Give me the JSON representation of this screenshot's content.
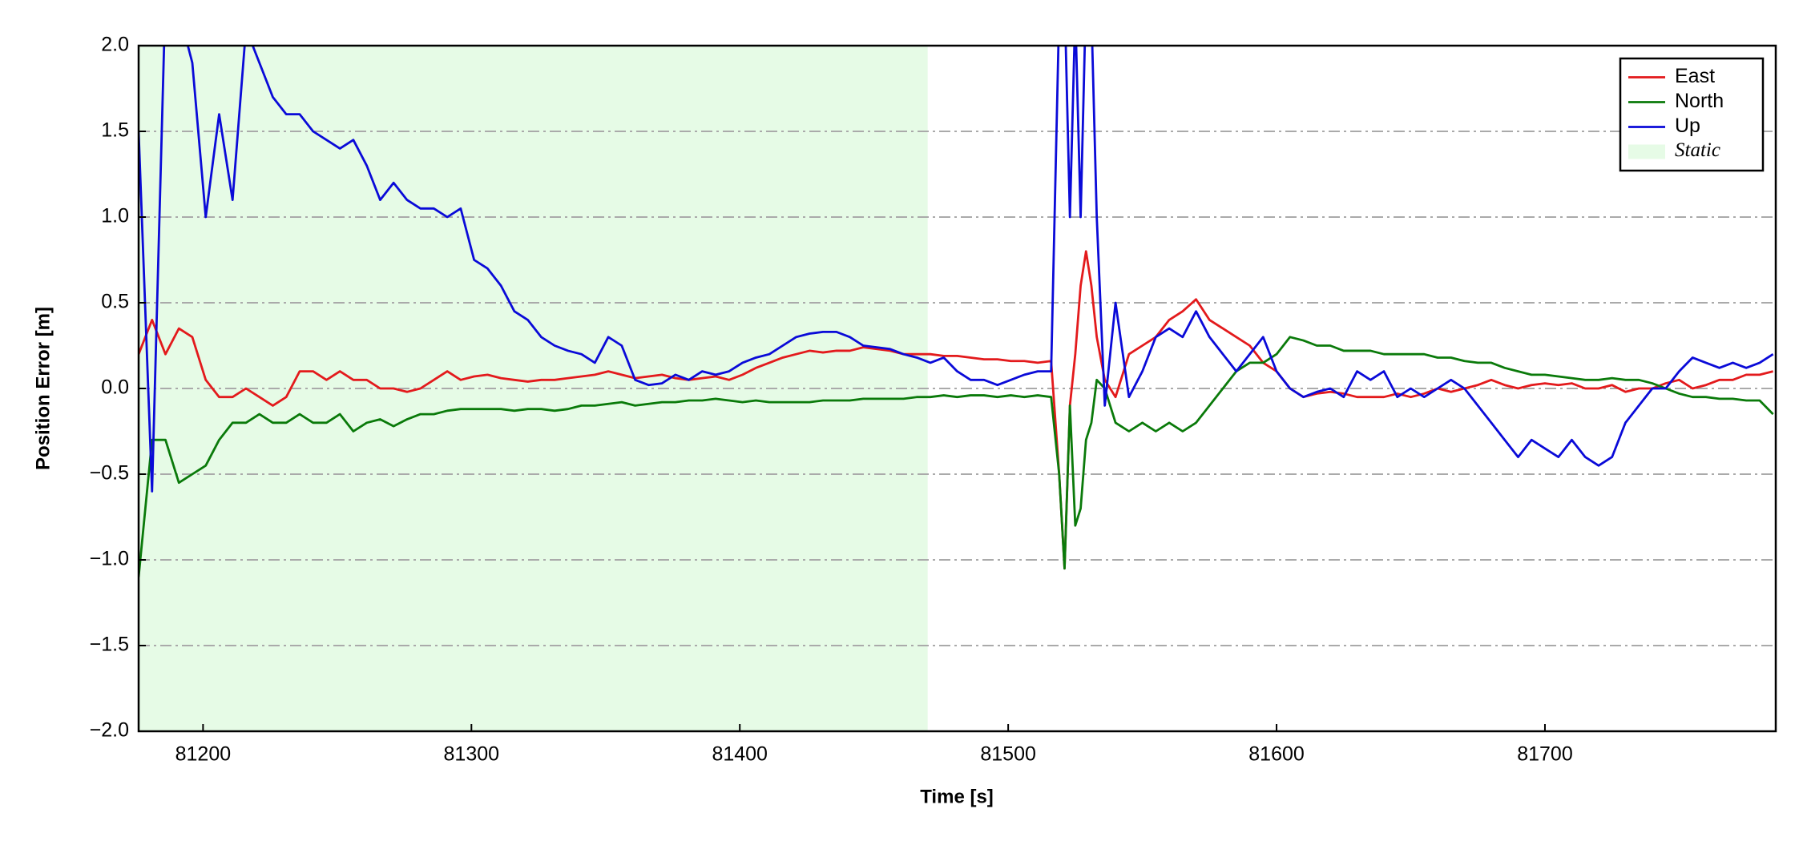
{
  "chart_data": {
    "type": "line",
    "xlabel": "Time [s]",
    "ylabel": "Position Error [m]",
    "xlim": [
      81176,
      81786
    ],
    "ylim": [
      -2.0,
      2.0
    ],
    "xticks": [
      81200,
      81300,
      81400,
      81500,
      81600,
      81700
    ],
    "yticks": [
      {
        "value": -2.0,
        "label": "−2.0"
      },
      {
        "value": -1.5,
        "label": "−1.5"
      },
      {
        "value": -1.0,
        "label": "−1.0"
      },
      {
        "value": -0.5,
        "label": "−0.5"
      },
      {
        "value": 0,
        "label": "0.0"
      },
      0.5,
      {
        "value": 1.0,
        "label": "1.0"
      },
      1.5,
      {
        "value": 2.0,
        "label": "2.0"
      }
    ],
    "grid": true,
    "legend": "upper right",
    "regions": [
      {
        "name": "Static",
        "start": 81176,
        "end": 81470,
        "color": "#e6fbe6"
      }
    ],
    "x": [
      81176,
      81181,
      81186,
      81191,
      81196,
      81201,
      81206,
      81211,
      81216,
      81221,
      81226,
      81231,
      81236,
      81241,
      81246,
      81251,
      81256,
      81261,
      81266,
      81271,
      81276,
      81281,
      81286,
      81291,
      81296,
      81301,
      81306,
      81311,
      81316,
      81321,
      81326,
      81331,
      81336,
      81341,
      81346,
      81351,
      81356,
      81361,
      81366,
      81371,
      81376,
      81381,
      81386,
      81391,
      81396,
      81401,
      81406,
      81411,
      81416,
      81421,
      81426,
      81431,
      81436,
      81441,
      81446,
      81451,
      81456,
      81461,
      81466,
      81471,
      81476,
      81481,
      81486,
      81491,
      81496,
      81501,
      81506,
      81511,
      81516,
      81519,
      81521,
      81523,
      81525,
      81527,
      81529,
      81531,
      81533,
      81536,
      81540,
      81545,
      81550,
      81555,
      81560,
      81565,
      81570,
      81575,
      81580,
      81585,
      81590,
      81595,
      81600,
      81605,
      81610,
      81615,
      81620,
      81625,
      81630,
      81635,
      81640,
      81645,
      81650,
      81655,
      81660,
      81665,
      81670,
      81675,
      81680,
      81685,
      81690,
      81695,
      81700,
      81705,
      81710,
      81715,
      81720,
      81725,
      81730,
      81735,
      81740,
      81745,
      81750,
      81755,
      81760,
      81765,
      81770,
      81775,
      81780,
      81785
    ],
    "series": [
      {
        "name": "East",
        "color": "#e31a1c",
        "values": [
          0.2,
          0.4,
          0.2,
          0.35,
          0.3,
          0.05,
          -0.05,
          -0.05,
          0.0,
          -0.05,
          -0.1,
          -0.05,
          0.1,
          0.1,
          0.05,
          0.1,
          0.05,
          0.05,
          0.0,
          0.0,
          -0.02,
          0.0,
          0.05,
          0.1,
          0.05,
          0.07,
          0.08,
          0.06,
          0.05,
          0.04,
          0.05,
          0.05,
          0.06,
          0.07,
          0.08,
          0.1,
          0.08,
          0.06,
          0.07,
          0.08,
          0.06,
          0.05,
          0.06,
          0.07,
          0.05,
          0.08,
          0.12,
          0.15,
          0.18,
          0.2,
          0.22,
          0.21,
          0.22,
          0.22,
          0.24,
          0.23,
          0.22,
          0.2,
          0.2,
          0.2,
          0.19,
          0.19,
          0.18,
          0.17,
          0.17,
          0.16,
          0.16,
          0.15,
          0.16,
          -0.5,
          -1.05,
          -0.1,
          0.2,
          0.6,
          0.8,
          0.6,
          0.3,
          0.05,
          -0.05,
          0.2,
          0.25,
          0.3,
          0.4,
          0.45,
          0.52,
          0.4,
          0.35,
          0.3,
          0.25,
          0.15,
          0.1,
          0.0,
          -0.05,
          -0.03,
          -0.02,
          -0.03,
          -0.05,
          -0.05,
          -0.05,
          -0.03,
          -0.05,
          -0.03,
          0.0,
          -0.02,
          0.0,
          0.02,
          0.05,
          0.02,
          0.0,
          0.02,
          0.03,
          0.02,
          0.03,
          0.0,
          0.0,
          0.02,
          -0.02,
          0.0,
          0.0,
          0.03,
          0.05,
          0.0,
          0.02,
          0.05,
          0.05,
          0.08,
          0.08,
          0.1
        ]
      },
      {
        "name": "North",
        "color": "#0a7a0a",
        "values": [
          -1.1,
          -0.3,
          -0.3,
          -0.55,
          -0.5,
          -0.45,
          -0.3,
          -0.2,
          -0.2,
          -0.15,
          -0.2,
          -0.2,
          -0.15,
          -0.2,
          -0.2,
          -0.15,
          -0.25,
          -0.2,
          -0.18,
          -0.22,
          -0.18,
          -0.15,
          -0.15,
          -0.13,
          -0.12,
          -0.12,
          -0.12,
          -0.12,
          -0.13,
          -0.12,
          -0.12,
          -0.13,
          -0.12,
          -0.1,
          -0.1,
          -0.09,
          -0.08,
          -0.1,
          -0.09,
          -0.08,
          -0.08,
          -0.07,
          -0.07,
          -0.06,
          -0.07,
          -0.08,
          -0.07,
          -0.08,
          -0.08,
          -0.08,
          -0.08,
          -0.07,
          -0.07,
          -0.07,
          -0.06,
          -0.06,
          -0.06,
          -0.06,
          -0.05,
          -0.05,
          -0.04,
          -0.05,
          -0.04,
          -0.04,
          -0.05,
          -0.04,
          -0.05,
          -0.04,
          -0.05,
          -0.5,
          -1.05,
          -0.1,
          -0.8,
          -0.7,
          -0.3,
          -0.2,
          0.05,
          0.0,
          -0.2,
          -0.25,
          -0.2,
          -0.25,
          -0.2,
          -0.25,
          -0.2,
          -0.1,
          0.0,
          0.1,
          0.15,
          0.15,
          0.2,
          0.3,
          0.28,
          0.25,
          0.25,
          0.22,
          0.22,
          0.22,
          0.2,
          0.2,
          0.2,
          0.2,
          0.18,
          0.18,
          0.16,
          0.15,
          0.15,
          0.12,
          0.1,
          0.08,
          0.08,
          0.07,
          0.06,
          0.05,
          0.05,
          0.06,
          0.05,
          0.05,
          0.03,
          0.0,
          -0.03,
          -0.05,
          -0.05,
          -0.06,
          -0.06,
          -0.07,
          -0.07,
          -0.15
        ]
      },
      {
        "name": "Up",
        "color": "#0a0ad8",
        "values": [
          1.5,
          -0.6,
          2.3,
          2.2,
          1.9,
          1.0,
          1.6,
          1.1,
          2.1,
          1.9,
          1.7,
          1.6,
          1.6,
          1.5,
          1.45,
          1.4,
          1.45,
          1.3,
          1.1,
          1.2,
          1.1,
          1.05,
          1.05,
          1.0,
          1.05,
          0.75,
          0.7,
          0.6,
          0.45,
          0.4,
          0.3,
          0.25,
          0.22,
          0.2,
          0.15,
          0.3,
          0.25,
          0.05,
          0.02,
          0.03,
          0.08,
          0.05,
          0.1,
          0.08,
          0.1,
          0.15,
          0.18,
          0.2,
          0.25,
          0.3,
          0.32,
          0.33,
          0.33,
          0.3,
          0.25,
          0.24,
          0.23,
          0.2,
          0.18,
          0.15,
          0.18,
          0.1,
          0.05,
          0.05,
          0.02,
          0.05,
          0.08,
          0.1,
          0.1,
          2.2,
          2.3,
          1.0,
          2.2,
          1.0,
          2.3,
          2.2,
          1.0,
          -0.1,
          0.5,
          -0.05,
          0.1,
          0.3,
          0.35,
          0.3,
          0.45,
          0.3,
          0.2,
          0.1,
          0.2,
          0.3,
          0.1,
          0.0,
          -0.05,
          -0.02,
          0.0,
          -0.05,
          0.1,
          0.05,
          0.1,
          -0.05,
          0.0,
          -0.05,
          0.0,
          0.05,
          0.0,
          -0.1,
          -0.2,
          -0.3,
          -0.4,
          -0.3,
          -0.35,
          -0.4,
          -0.3,
          -0.4,
          -0.45,
          -0.4,
          -0.2,
          -0.1,
          0.0,
          0.0,
          0.1,
          0.18,
          0.15,
          0.12,
          0.15,
          0.12,
          0.15,
          0.2
        ]
      }
    ]
  }
}
